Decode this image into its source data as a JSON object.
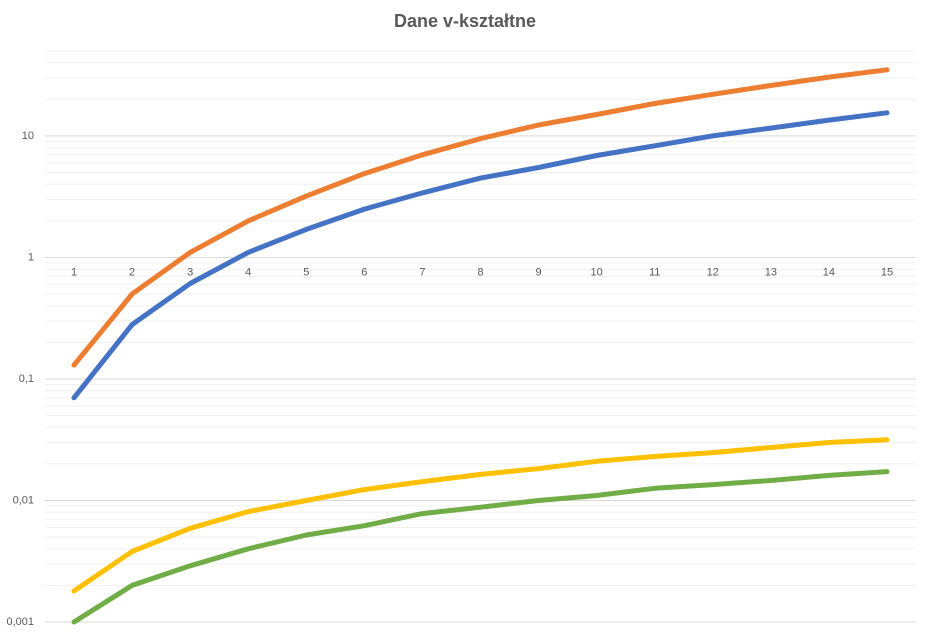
{
  "chart_data": {
    "type": "line",
    "title": "Dane v-kształtne",
    "categories": [
      "1",
      "2",
      "3",
      "4",
      "5",
      "6",
      "7",
      "8",
      "9",
      "10",
      "11",
      "12",
      "13",
      "14",
      "15"
    ],
    "series": [
      {
        "color": "#4472c4",
        "values": [
          0.07,
          0.28,
          0.61,
          1.1,
          1.7,
          2.5,
          3.4,
          4.5,
          5.5,
          6.9,
          8.3,
          10,
          11.6,
          13.5,
          15.5
        ]
      },
      {
        "color": "#ed7d31",
        "values": [
          0.13,
          0.5,
          1.1,
          2.0,
          3.2,
          4.9,
          7,
          9.5,
          12.3,
          15,
          18.5,
          22,
          26,
          30.5,
          35
        ]
      },
      {
        "color": "#ffc000",
        "values": [
          0.0018,
          0.0038,
          0.0059,
          0.0081,
          0.01,
          0.0123,
          0.0143,
          0.0164,
          0.0183,
          0.021,
          0.023,
          0.0248,
          0.0273,
          0.03,
          0.0316
        ]
      },
      {
        "color": "#70ad47",
        "values": [
          0.001,
          0.002,
          0.0029,
          0.004,
          0.0052,
          0.0062,
          0.0078,
          0.0088,
          0.01,
          0.011,
          0.0126,
          0.0135,
          0.0146,
          0.0161,
          0.0173
        ]
      }
    ],
    "log_scale": true,
    "ylim": [
      0.001,
      50
    ],
    "yticks": [
      {
        "value": 0.001,
        "label": "0,001"
      },
      {
        "value": 0.01,
        "label": "0,01"
      },
      {
        "value": 0.1,
        "label": "0,1"
      },
      1,
      10
    ],
    "xaxis_crosses": 1,
    "grid": true,
    "minor_grid": true
  }
}
